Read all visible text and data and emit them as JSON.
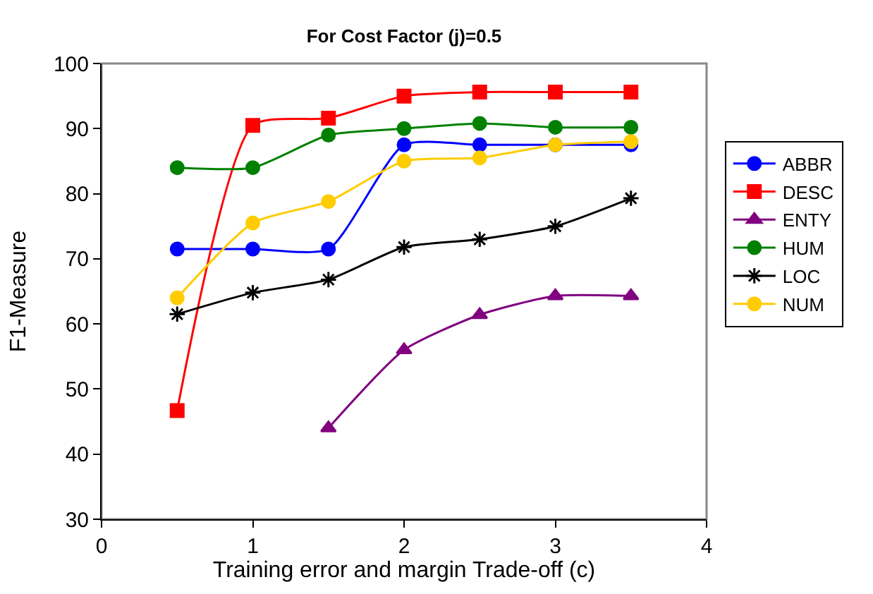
{
  "chart_data": {
    "type": "line",
    "title": "For Cost Factor (j)=0.5",
    "xlabel": "Training error and margin Trade-off (c)",
    "ylabel": "F1-Measure",
    "x": [
      0.5,
      1,
      1.5,
      2,
      2.5,
      3,
      3.5
    ],
    "series": [
      {
        "name": "ABBR",
        "color": "#0000ff",
        "marker": "circle",
        "values": [
          71.5,
          71.5,
          71.5,
          87.5,
          87.5,
          87.5,
          87.5
        ]
      },
      {
        "name": "DESC",
        "color": "#ff0000",
        "marker": "square",
        "values": [
          46.7,
          90.5,
          91.6,
          95,
          95.6,
          95.6,
          95.6
        ]
      },
      {
        "name": "ENTY",
        "color": "#800080",
        "marker": "triangle",
        "values": [
          null,
          null,
          44,
          56,
          61.4,
          64.3,
          64.3
        ]
      },
      {
        "name": "HUM",
        "color": "#008000",
        "marker": "circle",
        "values": [
          84,
          84,
          89,
          90,
          90.8,
          90.2,
          90.2
        ]
      },
      {
        "name": "LOC",
        "color": "#000000",
        "marker": "cross",
        "values": [
          61.5,
          64.8,
          66.8,
          71.8,
          73,
          75,
          79.3
        ]
      },
      {
        "name": "NUM",
        "color": "#ffcc00",
        "marker": "circle",
        "values": [
          64,
          75.5,
          78.8,
          85,
          85.5,
          87.5,
          88
        ]
      }
    ],
    "xlim": [
      0,
      4
    ],
    "xticks": [
      0,
      1,
      2,
      3,
      4
    ],
    "ylim": [
      30,
      100
    ],
    "yticks": [
      30,
      40,
      50,
      60,
      70,
      80,
      90,
      100
    ],
    "grid": false,
    "legend": "right",
    "line_style": "solid"
  }
}
